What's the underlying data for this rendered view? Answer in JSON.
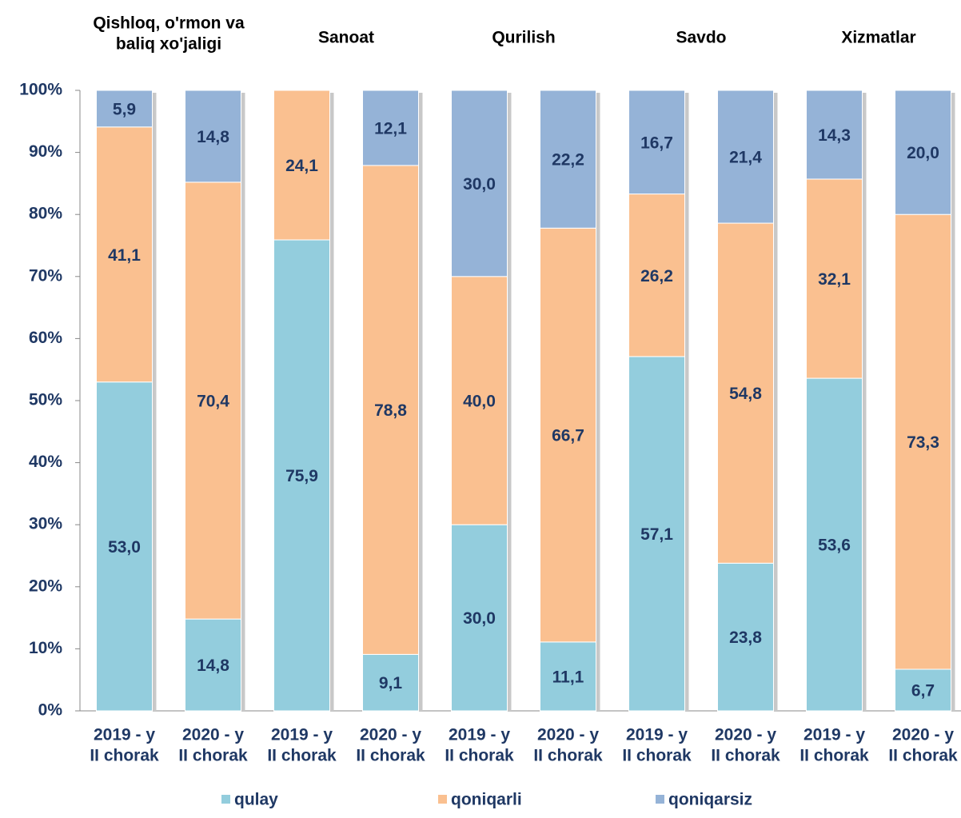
{
  "chart_data": {
    "type": "stacked_bar",
    "group_labels": [
      [
        "Qishloq, o'rmon va",
        "baliq xo'jaligi"
      ],
      [
        "Sanoat"
      ],
      [
        "Qurilish"
      ],
      [
        "Savdo"
      ],
      [
        "Xizmatlar"
      ]
    ],
    "categories": [
      [
        "2019 - y",
        "II chorak"
      ],
      [
        "2020 - y",
        "II chorak"
      ],
      [
        "2019 - y",
        "II chorak"
      ],
      [
        "2020 - y",
        "II chorak"
      ],
      [
        "2019 - y",
        "II chorak"
      ],
      [
        "2020 - y",
        "II chorak"
      ],
      [
        "2019 - y",
        "II chorak"
      ],
      [
        "2020 - y",
        "II chorak"
      ],
      [
        "2019 - y",
        "II chorak"
      ],
      [
        "2020 - y",
        "II chorak"
      ]
    ],
    "series": [
      {
        "name": "qulay",
        "color": "#93cddd",
        "values": [
          53.0,
          14.8,
          75.9,
          9.1,
          30.0,
          11.1,
          57.1,
          23.8,
          53.6,
          6.7
        ],
        "value_labels": [
          "53,0",
          "14,8",
          "75,9",
          "9,1",
          "30,0",
          "11,1",
          "57,1",
          "23,8",
          "53,6",
          "6,7"
        ]
      },
      {
        "name": "qoniqarli",
        "color": "#fac090",
        "values": [
          41.1,
          70.4,
          24.1,
          78.8,
          40.0,
          66.7,
          26.2,
          54.8,
          32.1,
          73.3
        ],
        "value_labels": [
          "41,1",
          "70,4",
          "24,1",
          "78,8",
          "40,0",
          "66,7",
          "26,2",
          "54,8",
          "32,1",
          "73,3"
        ]
      },
      {
        "name": "qoniqarsiz",
        "color": "#95b3d7",
        "values": [
          5.9,
          14.8,
          null,
          12.1,
          30.0,
          22.2,
          16.7,
          21.4,
          14.3,
          20.0
        ],
        "value_labels": [
          "5,9",
          "14,8",
          null,
          "12,1",
          "30,0",
          "22,2",
          "16,7",
          "21,4",
          "14,3",
          "20,0"
        ]
      }
    ],
    "ylim": [
      0,
      100
    ],
    "yticks": [
      {
        "value": 0,
        "label": "0%"
      },
      {
        "value": 10,
        "label": "10%"
      },
      {
        "value": 20,
        "label": "20%"
      },
      {
        "value": 30,
        "label": "30%"
      },
      {
        "value": 40,
        "label": "40%"
      },
      {
        "value": 50,
        "label": "50%"
      },
      {
        "value": 60,
        "label": "60%"
      },
      {
        "value": 70,
        "label": "70%"
      },
      {
        "value": 80,
        "label": "80%"
      },
      {
        "value": 90,
        "label": "90%"
      },
      {
        "value": 100,
        "label": "100%"
      }
    ],
    "legend": "bottom"
  }
}
